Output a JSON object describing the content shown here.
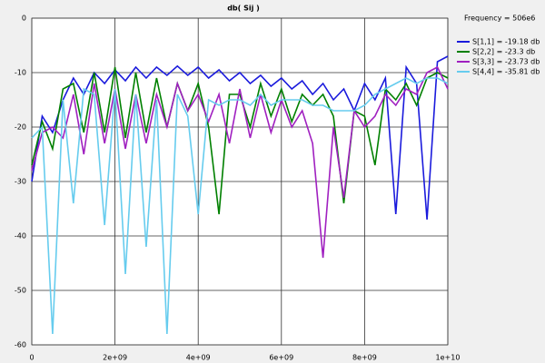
{
  "chart_data": {
    "type": "line",
    "title": "db( Sij )",
    "legend_title": "Frequency = 506e6",
    "x": [
      0,
      250000000.0,
      500000000.0,
      750000000.0,
      1000000000.0,
      1250000000.0,
      1500000000.0,
      1750000000.0,
      2000000000.0,
      2250000000.0,
      2500000000.0,
      2750000000.0,
      3000000000.0,
      3250000000.0,
      3500000000.0,
      3750000000.0,
      4000000000.0,
      4250000000.0,
      4500000000.0,
      4750000000.0,
      5000000000.0,
      5250000000.0,
      5500000000.0,
      5750000000.0,
      6000000000.0,
      6250000000.0,
      6500000000.0,
      6750000000.0,
      7000000000.0,
      7250000000.0,
      7500000000.0,
      7750000000.0,
      8000000000.0,
      8250000000.0,
      8500000000.0,
      8750000000.0,
      9000000000.0,
      9250000000.0,
      9500000000.0,
      9750000000.0,
      10000000000.0
    ],
    "series": [
      {
        "name": "S[1,1] = -19.18 db",
        "color": "#1a1adc",
        "values": [
          -30,
          -18,
          -21,
          -15,
          -11,
          -14,
          -10,
          -12,
          -9.5,
          -11.5,
          -9,
          -11,
          -9,
          -10.5,
          -8.8,
          -10.5,
          -9,
          -11,
          -9.5,
          -11.5,
          -10,
          -12,
          -10.5,
          -12.5,
          -11,
          -13,
          -11.5,
          -14,
          -12,
          -15,
          -13,
          -17,
          -12,
          -15,
          -11,
          -36,
          -9,
          -12,
          -37,
          -8,
          -7
        ]
      },
      {
        "name": "S[2,2] = -23.3 db",
        "color": "#008000",
        "values": [
          -27,
          -19,
          -24,
          -13,
          -12,
          -21,
          -10,
          -21,
          -9,
          -22,
          -10,
          -21,
          -11,
          -20,
          -12,
          -17,
          -12,
          -20,
          -36,
          -14,
          -14,
          -20,
          -12,
          -18,
          -13,
          -19,
          -14,
          -16,
          -14,
          -18,
          -34,
          -17,
          -18,
          -27,
          -13,
          -15,
          -12,
          -16,
          -11,
          -10,
          -11
        ]
      },
      {
        "name": "S[3,3] = -23.73 db",
        "color": "#a020c0",
        "values": [
          -28,
          -21,
          -20,
          -22,
          -14,
          -25,
          -12,
          -23,
          -13,
          -24,
          -14,
          -23,
          -14,
          -20,
          -12,
          -17,
          -14,
          -19,
          -14,
          -23,
          -13,
          -22,
          -14,
          -21,
          -15,
          -20,
          -17,
          -23,
          -44,
          -20,
          -33,
          -17,
          -20,
          -18,
          -14,
          -16,
          -13,
          -14,
          -10,
          -9,
          -13
        ]
      },
      {
        "name": "S[4,4] = -35.81 db",
        "color": "#66ccee",
        "values": [
          -22,
          -20,
          -58,
          -15,
          -34,
          -13,
          -14,
          -38,
          -13,
          -47,
          -14,
          -42,
          -15,
          -58,
          -14,
          -18,
          -36,
          -15,
          -16,
          -15,
          -15,
          -16,
          -14,
          -16,
          -15,
          -15,
          -15,
          -16,
          -16,
          -17,
          -17,
          -17,
          -16,
          -14,
          -13,
          -12,
          -11,
          -12,
          -11,
          -11,
          -12
        ]
      }
    ],
    "xlim": [
      0,
      10000000000.0
    ],
    "xticks": [
      0,
      {
        "value": 2000000000.0,
        "label": "2e+09"
      },
      {
        "value": 4000000000.0,
        "label": "4e+09"
      },
      {
        "value": 6000000000.0,
        "label": "6e+09"
      },
      {
        "value": 8000000000.0,
        "label": "8e+09"
      },
      {
        "value": 10000000000.0,
        "label": "1e+10"
      }
    ],
    "ylim": [
      -60,
      0
    ],
    "yticks": [
      0,
      -10,
      -20,
      -30,
      -40,
      -50,
      -60
    ],
    "grid": true
  }
}
